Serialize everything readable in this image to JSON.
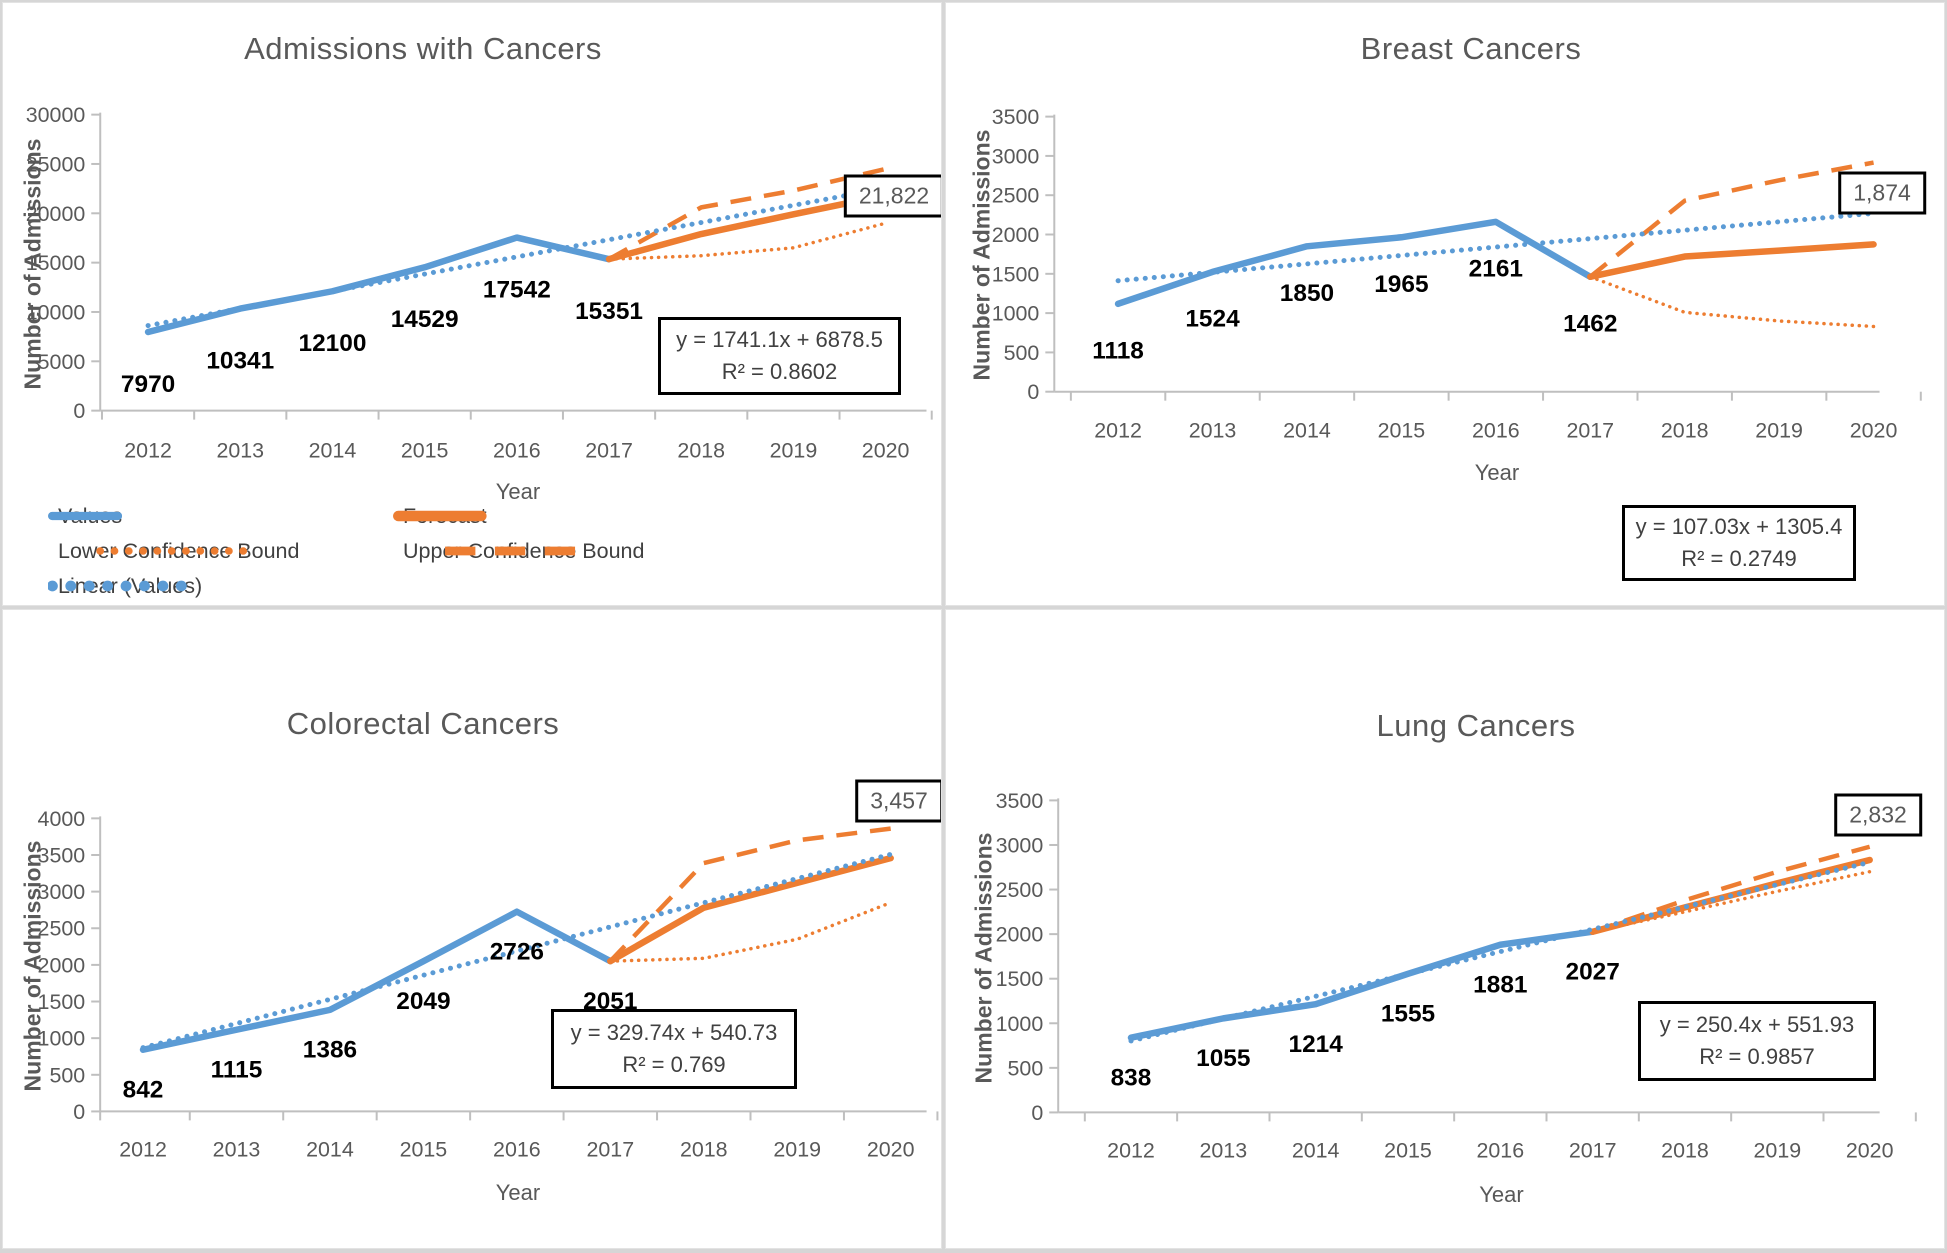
{
  "colors": {
    "values_blue": "#5B9BD5",
    "forecast_orange": "#ED7D31",
    "axis_text": "#595959",
    "legend_text": "#404040",
    "data_label_text": "#000000",
    "axis_line": "#BFBFBF",
    "callout_border": "#000000"
  },
  "legend": {
    "items": [
      {
        "label": "Values",
        "style": "values"
      },
      {
        "label": "Forecast",
        "style": "forecast"
      },
      {
        "label": "Lower Confidence Bound",
        "style": "lower"
      },
      {
        "label": "Upper Confidence Bound",
        "style": "upper"
      },
      {
        "label": "Linear (Values)",
        "style": "linear"
      }
    ]
  },
  "charts": [
    {
      "title": "Admissions with Cancers",
      "y_axis_title": "Number of Admissions",
      "x_axis_title": "Year",
      "equation": "y = 1741.1x + 6878.5",
      "r_squared": "R² = 0.8602",
      "end_label": "21,822",
      "chart_data": {
        "type": "line",
        "x": [
          2012,
          2013,
          2014,
          2015,
          2016,
          2017,
          2018,
          2019,
          2020
        ],
        "ylim": [
          0,
          30000
        ],
        "ytick_step": 5000,
        "grid": false,
        "legend_position": "bottom-left",
        "data_labels": [
          "7970",
          "10341",
          "12100",
          "14529",
          "17542",
          "15351"
        ],
        "series": [
          {
            "name": "Values",
            "x": [
              2012,
              2013,
              2014,
              2015,
              2016,
              2017
            ],
            "values": [
              7970,
              10341,
              12100,
              14529,
              17542,
              15351
            ]
          },
          {
            "name": "Forecast",
            "x": [
              2017,
              2018,
              2019,
              2020
            ],
            "values": [
              15351,
              17900,
              19900,
              21822
            ]
          },
          {
            "name": "Lower Confidence Bound",
            "x": [
              2017,
              2018,
              2019,
              2020
            ],
            "values": [
              15351,
              15700,
              16500,
              19000
            ]
          },
          {
            "name": "Upper Confidence Bound",
            "x": [
              2017,
              2018,
              2019,
              2020
            ],
            "values": [
              15351,
              20600,
              22300,
              24500
            ]
          },
          {
            "name": "Linear (Values)",
            "x": [
              2012,
              2020
            ],
            "values": [
              8620,
              22548
            ]
          }
        ]
      }
    },
    {
      "title": "Breast Cancers",
      "y_axis_title": "Number of Admissions",
      "x_axis_title": "Year",
      "equation": "y = 107.03x + 1305.4",
      "r_squared": "R² = 0.2749",
      "end_label": "1,874",
      "chart_data": {
        "type": "line",
        "x": [
          2012,
          2013,
          2014,
          2015,
          2016,
          2017,
          2018,
          2019,
          2020
        ],
        "ylim": [
          0,
          3500
        ],
        "ytick_step": 500,
        "grid": false,
        "legend_position": "none",
        "data_labels": [
          "1118",
          "1524",
          "1850",
          "1965",
          "2161",
          "1462"
        ],
        "series": [
          {
            "name": "Values",
            "x": [
              2012,
              2013,
              2014,
              2015,
              2016,
              2017
            ],
            "values": [
              1118,
              1524,
              1850,
              1965,
              2161,
              1462
            ]
          },
          {
            "name": "Forecast",
            "x": [
              2017,
              2018,
              2019,
              2020
            ],
            "values": [
              1462,
              1720,
              1795,
              1874
            ]
          },
          {
            "name": "Lower Confidence Bound",
            "x": [
              2017,
              2018,
              2019,
              2020
            ],
            "values": [
              1462,
              1010,
              900,
              830
            ]
          },
          {
            "name": "Upper Confidence Bound",
            "x": [
              2017,
              2018,
              2019,
              2020
            ],
            "values": [
              1462,
              2430,
              2690,
              2915
            ]
          },
          {
            "name": "Linear (Values)",
            "x": [
              2012,
              2020
            ],
            "values": [
              1412,
              2269
            ]
          }
        ]
      }
    },
    {
      "title": "Colorectal Cancers",
      "y_axis_title": "Number of Admissions",
      "x_axis_title": "Year",
      "equation": "y = 329.74x + 540.73",
      "r_squared": "R² = 0.769",
      "end_label": "3,457",
      "chart_data": {
        "type": "line",
        "x": [
          2012,
          2013,
          2014,
          2015,
          2016,
          2017,
          2018,
          2019,
          2020
        ],
        "ylim": [
          0,
          4000
        ],
        "ytick_step": 500,
        "grid": false,
        "legend_position": "none",
        "data_labels": [
          "842",
          "1115",
          "1386",
          "2049",
          "2726",
          "2051"
        ],
        "series": [
          {
            "name": "Values",
            "x": [
              2012,
              2013,
              2014,
              2015,
              2016,
              2017
            ],
            "values": [
              842,
              1115,
              1386,
              2049,
              2726,
              2051
            ]
          },
          {
            "name": "Forecast",
            "x": [
              2017,
              2018,
              2019,
              2020
            ],
            "values": [
              2051,
              2780,
              3120,
              3457
            ]
          },
          {
            "name": "Lower Confidence Bound",
            "x": [
              2017,
              2018,
              2019,
              2020
            ],
            "values": [
              2051,
              2090,
              2350,
              2850
            ]
          },
          {
            "name": "Upper Confidence Bound",
            "x": [
              2017,
              2018,
              2019,
              2020
            ],
            "values": [
              2051,
              3390,
              3700,
              3860
            ]
          },
          {
            "name": "Linear (Values)",
            "x": [
              2012,
              2020
            ],
            "values": [
              870,
              3508
            ]
          }
        ]
      }
    },
    {
      "title": "Lung Cancers",
      "y_axis_title": "Number of Admissions",
      "x_axis_title": "Year",
      "equation": "y = 250.4x + 551.93",
      "r_squared": "R² = 0.9857",
      "end_label": "2,832",
      "chart_data": {
        "type": "line",
        "x": [
          2012,
          2013,
          2014,
          2015,
          2016,
          2017,
          2018,
          2019,
          2020
        ],
        "ylim": [
          0,
          3500
        ],
        "ytick_step": 500,
        "grid": false,
        "legend_position": "none",
        "data_labels": [
          "838",
          "1055",
          "1214",
          "1555",
          "1881",
          "2027"
        ],
        "series": [
          {
            "name": "Values",
            "x": [
              2012,
              2013,
              2014,
              2015,
              2016,
              2017
            ],
            "values": [
              838,
              1055,
              1214,
              1555,
              1881,
              2027
            ]
          },
          {
            "name": "Forecast",
            "x": [
              2017,
              2018,
              2019,
              2020
            ],
            "values": [
              2027,
              2300,
              2570,
              2832
            ]
          },
          {
            "name": "Lower Confidence Bound",
            "x": [
              2017,
              2018,
              2019,
              2020
            ],
            "values": [
              2027,
              2250,
              2480,
              2700
            ]
          },
          {
            "name": "Upper Confidence Bound",
            "x": [
              2017,
              2018,
              2019,
              2020
            ],
            "values": [
              2027,
              2380,
              2700,
              2980
            ]
          },
          {
            "name": "Linear (Values)",
            "x": [
              2012,
              2020
            ],
            "values": [
              802,
              2806
            ]
          }
        ]
      }
    }
  ]
}
